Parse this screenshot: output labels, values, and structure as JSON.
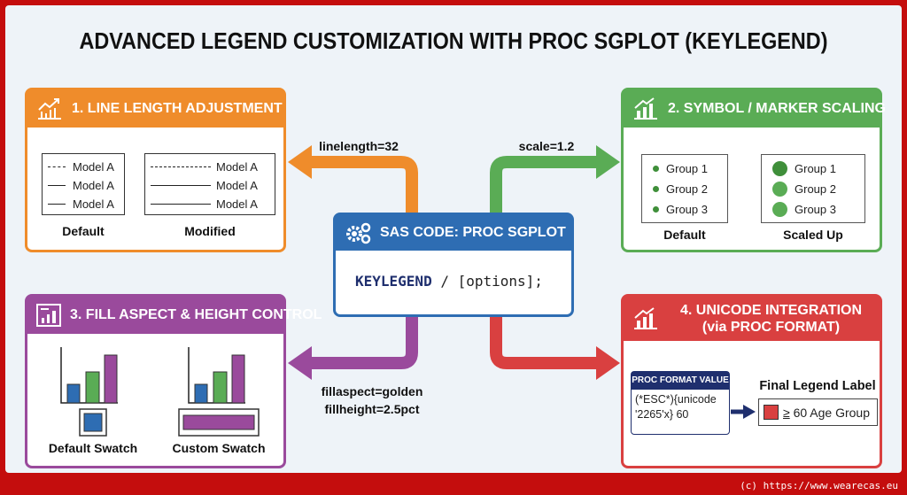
{
  "title": "ADVANCED LEGEND CUSTOMIZATION WITH PROC SGPLOT (KEYLEGEND)",
  "colors": {
    "orange": "#ef8c2b",
    "green": "#5aac55",
    "purple": "#9a4a9c",
    "red": "#d94040",
    "blue": "#2e6db3",
    "navy": "#1f2f6e",
    "frame": "#c40d0d"
  },
  "center": {
    "title": "SAS CODE: PROC SGPLOT",
    "code_keyword": "KEYLEGEND",
    "code_rest": " / [options];",
    "icon": "gears-icon"
  },
  "arrows": {
    "linelength": "linelength=32",
    "scale": "scale=1.2",
    "fill_line1": "fillaspect=golden",
    "fill_line2": "fillheight=2.5pct"
  },
  "panel1": {
    "title": "1. LINE LENGTH ADJUSTMENT",
    "icon": "line-chart-icon",
    "default_label": "Default",
    "modified_label": "Modified",
    "entries": [
      "Model A",
      "Model A",
      "Model A"
    ]
  },
  "panel2": {
    "title": "2. SYMBOL / MARKER SCALING",
    "icon": "bar-chart-icon",
    "default_label": "Default",
    "scaled_label": "Scaled Up",
    "entries": [
      "Group 1",
      "Group 2",
      "Group 3"
    ]
  },
  "panel3": {
    "title": "3. FILL ASPECT & HEIGHT CONTROL",
    "icon": "dashboard-chart-icon",
    "default_label": "Default Swatch",
    "custom_label": "Custom Swatch"
  },
  "panel4": {
    "title_line1": "4. UNICODE INTEGRATION",
    "title_line2": "(via PROC FORMAT)",
    "icon": "bar-chart-icon",
    "format_header": "PROC FORMAT VALUE",
    "format_line1": "(*ESC*){unicode",
    "format_line2": "'2265'x} 60",
    "final_title": "Final Legend Label",
    "final_symbol": "≥",
    "final_text": " 60 Age Group"
  },
  "footer": "(c) https://www.wearecas.eu"
}
